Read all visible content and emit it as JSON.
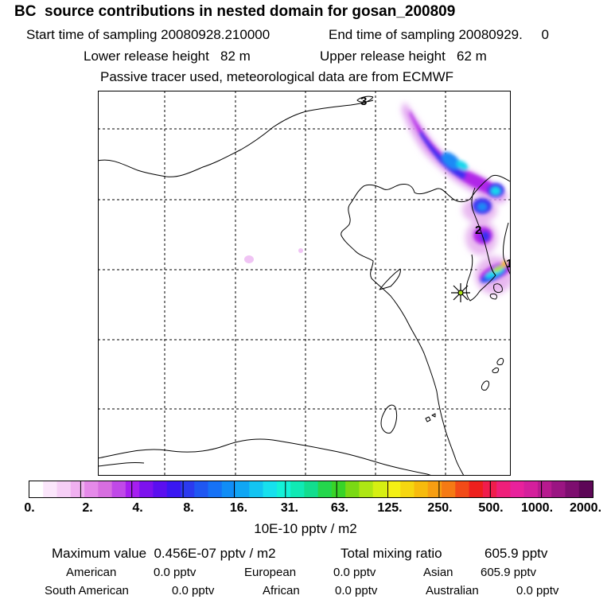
{
  "header": {
    "title": "BC  source contributions in nested domain for gosan_200809",
    "start_label": "Start time of sampling 20080928.210000",
    "end_label": "End time of sampling 20080929.     0",
    "lower_label": "Lower release height   82 m",
    "upper_label": "Upper release height   62 m",
    "passive_label": "Passive tracer used, meteorological data are from ECMWF"
  },
  "map": {
    "markers": [
      "3",
      "2",
      "1"
    ],
    "receptor": "gosan-station"
  },
  "colorbar": {
    "ticks": [
      "0.",
      "2.",
      "4.",
      "8.",
      "16.",
      "31.",
      "63.",
      "125.",
      "250.",
      "500.",
      "1000.",
      "2000."
    ],
    "colors": [
      "#ffffff",
      "#fbe6fb",
      "#f6cff6",
      "#f0b0f0",
      "#e58ae9",
      "#d76ee0",
      "#c049e8",
      "#a61ef0",
      "#7d12ee",
      "#5b0ff0",
      "#3a17f2",
      "#2b3aef",
      "#1f57f2",
      "#1672f6",
      "#108df6",
      "#10a6f4",
      "#13c4f2",
      "#17e0ee",
      "#14f1d8",
      "#10e9b4",
      "#12dd8e",
      "#24d64c",
      "#38d428",
      "#7ad914",
      "#aee614",
      "#d6ef12",
      "#f4f014",
      "#f6d610",
      "#f7bb0d",
      "#f79e12",
      "#f57a14",
      "#f24b18",
      "#ee201d",
      "#f01d4c",
      "#ef1f7a",
      "#e8219c",
      "#d41f9c",
      "#b71a8f",
      "#9a1582",
      "#7d0e6f",
      "#5d0757"
    ],
    "units": "10E-10 pptv / m2"
  },
  "stats": {
    "max_label": "Maximum value  0.456E-07 pptv / m2",
    "total_label": "Total mixing ratio",
    "total_value": "605.9 pptv"
  },
  "sources": [
    {
      "name": "American",
      "value": "0.0 pptv"
    },
    {
      "name": "European",
      "value": "0.0 pptv"
    },
    {
      "name": "Asian",
      "value": "605.9 pptv"
    },
    {
      "name": "South American",
      "value": "0.0 pptv"
    },
    {
      "name": "African",
      "value": "0.0 pptv"
    },
    {
      "name": "Australian",
      "value": "0.0 pptv"
    }
  ]
}
